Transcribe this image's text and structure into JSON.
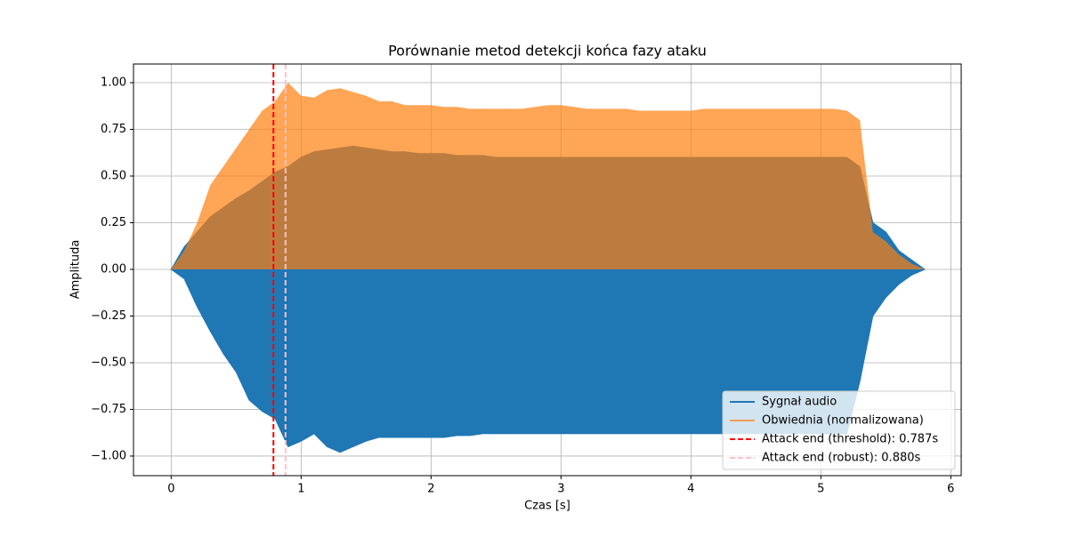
{
  "chart_data": {
    "type": "waveform",
    "title": "Porównanie metod detekcji końca fazy ataku",
    "x_label": "Czas [s]",
    "y_label": "Amplituda",
    "x": [
      0,
      0.1,
      0.2,
      0.3,
      0.4,
      0.5,
      0.6,
      0.7,
      0.8,
      0.9,
      1,
      1.1,
      1.2,
      1.3,
      1.4,
      1.5,
      1.6,
      1.7,
      1.8,
      1.9,
      2,
      2.1,
      2.2,
      2.3,
      2.4,
      2.5,
      2.6,
      2.7,
      2.8,
      2.9,
      3,
      3.1,
      3.2,
      3.3,
      3.4,
      3.5,
      3.6,
      3.7,
      3.8,
      3.9,
      4,
      4.1,
      4.2,
      4.3,
      4.4,
      4.5,
      4.6,
      4.7,
      4.8,
      4.9,
      5,
      5.1,
      5.2,
      5.3,
      5.4,
      5.5,
      5.6,
      5.7,
      5.8
    ],
    "series": [
      {
        "name": "Sygnał audio",
        "color": "#1f77b4",
        "high": [
          0,
          0.12,
          0.2,
          0.28,
          0.33,
          0.38,
          0.42,
          0.47,
          0.52,
          0.55,
          0.6,
          0.63,
          0.64,
          0.65,
          0.66,
          0.65,
          0.64,
          0.63,
          0.63,
          0.62,
          0.62,
          0.62,
          0.61,
          0.61,
          0.61,
          0.6,
          0.6,
          0.6,
          0.6,
          0.6,
          0.6,
          0.6,
          0.6,
          0.6,
          0.6,
          0.6,
          0.6,
          0.6,
          0.6,
          0.6,
          0.6,
          0.6,
          0.6,
          0.6,
          0.6,
          0.6,
          0.6,
          0.6,
          0.6,
          0.6,
          0.6,
          0.6,
          0.6,
          0.55,
          0.25,
          0.2,
          0.1,
          0.05,
          0
        ],
        "low": [
          0,
          -0.05,
          -0.2,
          -0.33,
          -0.45,
          -0.55,
          -0.7,
          -0.76,
          -0.8,
          -0.95,
          -0.92,
          -0.88,
          -0.95,
          -0.98,
          -0.95,
          -0.92,
          -0.9,
          -0.9,
          -0.9,
          -0.9,
          -0.9,
          -0.9,
          -0.89,
          -0.89,
          -0.88,
          -0.88,
          -0.88,
          -0.88,
          -0.88,
          -0.88,
          -0.88,
          -0.88,
          -0.88,
          -0.88,
          -0.88,
          -0.88,
          -0.88,
          -0.88,
          -0.88,
          -0.88,
          -0.88,
          -0.88,
          -0.88,
          -0.88,
          -0.88,
          -0.88,
          -0.88,
          -0.88,
          -0.88,
          -0.88,
          -0.88,
          -0.88,
          -0.88,
          -0.6,
          -0.25,
          -0.15,
          -0.08,
          -0.03,
          0
        ]
      },
      {
        "name": "Obwiednia (normalizowana)",
        "color": "#ff7f0e",
        "values": [
          0,
          0.1,
          0.25,
          0.45,
          0.55,
          0.65,
          0.75,
          0.85,
          0.9,
          1,
          0.93,
          0.92,
          0.96,
          0.97,
          0.95,
          0.93,
          0.9,
          0.9,
          0.88,
          0.88,
          0.88,
          0.87,
          0.87,
          0.86,
          0.86,
          0.86,
          0.86,
          0.86,
          0.87,
          0.88,
          0.88,
          0.87,
          0.86,
          0.86,
          0.86,
          0.86,
          0.85,
          0.85,
          0.85,
          0.85,
          0.85,
          0.86,
          0.86,
          0.86,
          0.86,
          0.86,
          0.86,
          0.86,
          0.86,
          0.86,
          0.86,
          0.86,
          0.85,
          0.8,
          0.2,
          0.15,
          0.08,
          0.03,
          0
        ]
      }
    ],
    "vlines": [
      {
        "name": "Attack end (threshold): 0.787s",
        "x": 0.787,
        "color": "#ff0000"
      },
      {
        "name": "Attack end (robust): 0.880s",
        "x": 0.88,
        "color": "#ffc0cb"
      }
    ],
    "xlim": [
      -0.29,
      6.08
    ],
    "ylim": [
      -1.105,
      1.1
    ],
    "xticks": [
      0,
      1,
      2,
      3,
      4,
      5,
      6
    ],
    "yticks": [
      {
        "value": -1,
        "label": "−1.00"
      },
      {
        "value": -0.75,
        "label": "−0.75"
      },
      {
        "value": -0.5,
        "label": "−0.50"
      },
      {
        "value": -0.25,
        "label": "−0.25"
      },
      {
        "value": 0,
        "label": "0.00"
      },
      {
        "value": 0.25,
        "label": "0.25"
      },
      {
        "value": 0.5,
        "label": "0.50"
      },
      {
        "value": 0.75,
        "label": "0.75"
      },
      {
        "value": 1,
        "label": "1.00"
      }
    ],
    "grid": true,
    "legend": "lower right"
  }
}
